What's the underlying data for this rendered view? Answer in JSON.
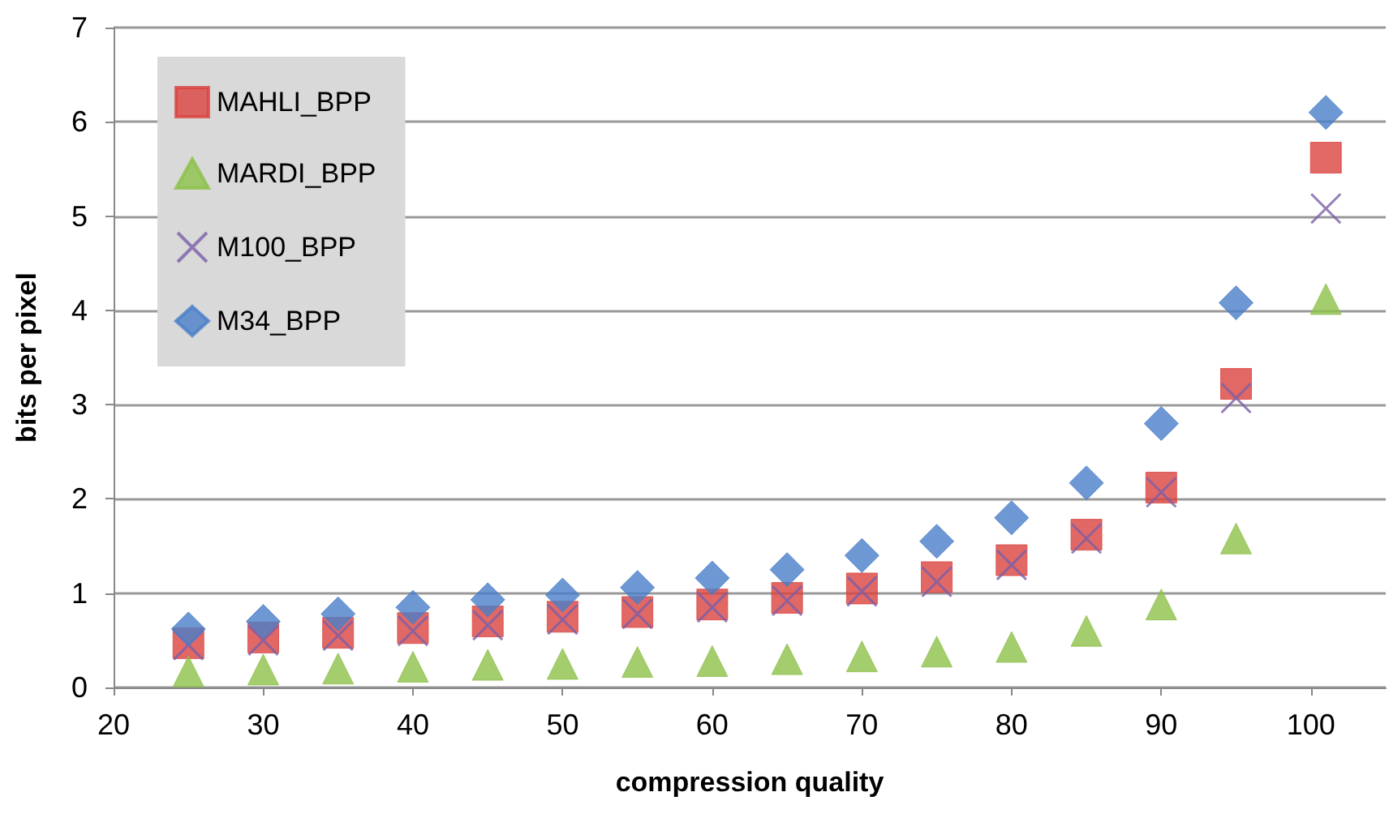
{
  "chart_data": {
    "type": "scatter",
    "xlabel": "compression quality",
    "ylabel": "bits per pixel",
    "x": [
      25,
      30,
      35,
      40,
      45,
      50,
      55,
      60,
      65,
      70,
      75,
      80,
      85,
      90,
      95,
      101
    ],
    "xlim": [
      20,
      105
    ],
    "xticks": [
      20,
      30,
      40,
      50,
      60,
      70,
      80,
      90,
      100
    ],
    "ylim": [
      0,
      7
    ],
    "yticks": [
      0,
      1,
      2,
      3,
      4,
      5,
      6,
      7
    ],
    "grid": "y",
    "legend": "top left",
    "series": [
      {
        "name": "MAHLI_BPP",
        "color": "#d9423f",
        "marker": "square",
        "values": [
          0.47,
          0.53,
          0.58,
          0.63,
          0.7,
          0.75,
          0.8,
          0.88,
          0.95,
          1.05,
          1.17,
          1.35,
          1.62,
          2.12,
          3.22,
          5.62
        ]
      },
      {
        "name": "MARDI_BPP",
        "color": "#8dc04a",
        "marker": "triangle",
        "values": [
          0.17,
          0.19,
          0.2,
          0.22,
          0.24,
          0.25,
          0.27,
          0.28,
          0.3,
          0.33,
          0.38,
          0.43,
          0.6,
          0.88,
          1.58,
          4.12
        ]
      },
      {
        "name": "M100_BPP",
        "color": "#7b5ea7",
        "marker": "cross",
        "values": [
          0.45,
          0.5,
          0.55,
          0.6,
          0.66,
          0.72,
          0.78,
          0.85,
          0.92,
          1.02,
          1.12,
          1.3,
          1.58,
          2.07,
          3.07,
          5.08
        ]
      },
      {
        "name": "M34_BPP",
        "color": "#4a7ec8",
        "marker": "diamond",
        "values": [
          0.62,
          0.7,
          0.78,
          0.85,
          0.93,
          0.98,
          1.06,
          1.16,
          1.25,
          1.4,
          1.55,
          1.8,
          2.17,
          2.8,
          4.08,
          6.1
        ]
      }
    ]
  }
}
